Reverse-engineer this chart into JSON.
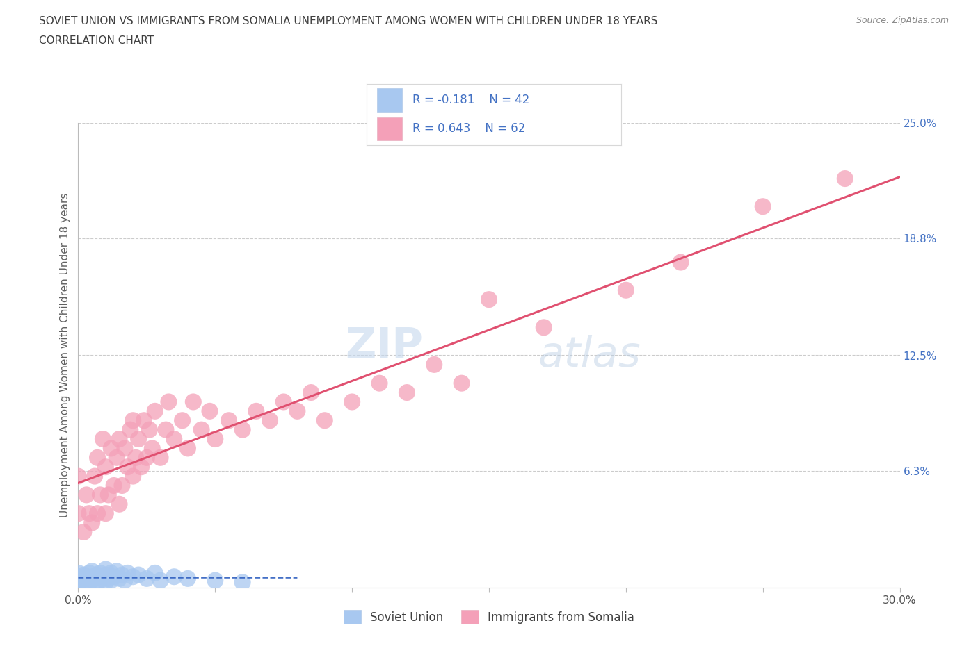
{
  "title_line1": "SOVIET UNION VS IMMIGRANTS FROM SOMALIA UNEMPLOYMENT AMONG WOMEN WITH CHILDREN UNDER 18 YEARS",
  "title_line2": "CORRELATION CHART",
  "source": "Source: ZipAtlas.com",
  "ylabel": "Unemployment Among Women with Children Under 18 years",
  "xlim": [
    0.0,
    0.3
  ],
  "ylim": [
    0.0,
    0.25
  ],
  "xticks": [
    0.0,
    0.05,
    0.1,
    0.15,
    0.2,
    0.25,
    0.3
  ],
  "ytick_positions": [
    0.0,
    0.063,
    0.125,
    0.188,
    0.25
  ],
  "ytick_labels": [
    "",
    "6.3%",
    "12.5%",
    "18.8%",
    "25.0%"
  ],
  "r_soviet": -0.181,
  "n_soviet": 42,
  "r_somalia": 0.643,
  "n_somalia": 62,
  "soviet_color": "#a8c8f0",
  "somalia_color": "#f4a0b8",
  "soviet_line_color": "#3060c0",
  "somalia_line_color": "#e05070",
  "watermark_zip": "ZIP",
  "watermark_atlas": "atlas",
  "background_color": "#ffffff",
  "grid_color": "#cccccc",
  "title_color": "#404040",
  "axis_label_color": "#606060",
  "right_tick_color": "#4472c4",
  "source_color": "#888888",
  "soviet_x": [
    0.0,
    0.0,
    0.0,
    0.0,
    0.0,
    0.0,
    0.0,
    0.002,
    0.002,
    0.003,
    0.004,
    0.004,
    0.005,
    0.005,
    0.005,
    0.006,
    0.007,
    0.007,
    0.008,
    0.008,
    0.009,
    0.01,
    0.01,
    0.01,
    0.011,
    0.012,
    0.012,
    0.013,
    0.014,
    0.015,
    0.016,
    0.017,
    0.018,
    0.02,
    0.022,
    0.025,
    0.028,
    0.03,
    0.035,
    0.04,
    0.05,
    0.06
  ],
  "soviet_y": [
    0.0,
    0.002,
    0.003,
    0.004,
    0.005,
    0.006,
    0.008,
    0.002,
    0.007,
    0.005,
    0.003,
    0.008,
    0.004,
    0.006,
    0.009,
    0.005,
    0.003,
    0.007,
    0.004,
    0.008,
    0.006,
    0.003,
    0.007,
    0.01,
    0.005,
    0.004,
    0.008,
    0.006,
    0.009,
    0.005,
    0.007,
    0.004,
    0.008,
    0.006,
    0.007,
    0.005,
    0.008,
    0.004,
    0.006,
    0.005,
    0.004,
    0.003
  ],
  "somalia_x": [
    0.0,
    0.0,
    0.002,
    0.003,
    0.004,
    0.005,
    0.006,
    0.007,
    0.007,
    0.008,
    0.009,
    0.01,
    0.01,
    0.011,
    0.012,
    0.013,
    0.014,
    0.015,
    0.015,
    0.016,
    0.017,
    0.018,
    0.019,
    0.02,
    0.02,
    0.021,
    0.022,
    0.023,
    0.024,
    0.025,
    0.026,
    0.027,
    0.028,
    0.03,
    0.032,
    0.033,
    0.035,
    0.038,
    0.04,
    0.042,
    0.045,
    0.048,
    0.05,
    0.055,
    0.06,
    0.065,
    0.07,
    0.075,
    0.08,
    0.085,
    0.09,
    0.1,
    0.11,
    0.12,
    0.13,
    0.14,
    0.15,
    0.17,
    0.2,
    0.22,
    0.25,
    0.28
  ],
  "somalia_y": [
    0.04,
    0.06,
    0.03,
    0.05,
    0.04,
    0.035,
    0.06,
    0.04,
    0.07,
    0.05,
    0.08,
    0.04,
    0.065,
    0.05,
    0.075,
    0.055,
    0.07,
    0.045,
    0.08,
    0.055,
    0.075,
    0.065,
    0.085,
    0.06,
    0.09,
    0.07,
    0.08,
    0.065,
    0.09,
    0.07,
    0.085,
    0.075,
    0.095,
    0.07,
    0.085,
    0.1,
    0.08,
    0.09,
    0.075,
    0.1,
    0.085,
    0.095,
    0.08,
    0.09,
    0.085,
    0.095,
    0.09,
    0.1,
    0.095,
    0.105,
    0.09,
    0.1,
    0.11,
    0.105,
    0.12,
    0.11,
    0.155,
    0.14,
    0.16,
    0.175,
    0.205,
    0.22
  ]
}
